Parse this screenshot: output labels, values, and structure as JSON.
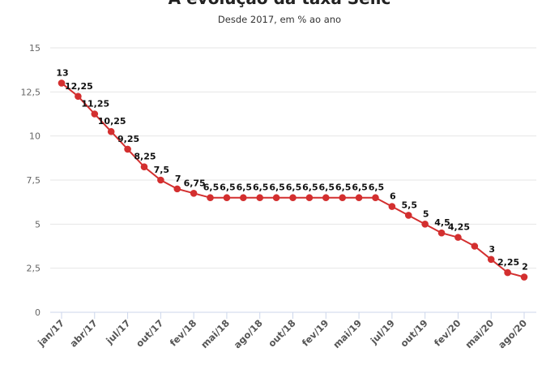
{
  "chart_data": {
    "type": "line",
    "title": "A evolução da taxa Selic",
    "subtitle": "Desde 2017, em % ao ano",
    "xlabel": "",
    "ylabel": "",
    "ylim": [
      0,
      15
    ],
    "yticks": [
      "0",
      "2,5",
      "5",
      "7,5",
      "10",
      "12,5",
      "15"
    ],
    "ytick_values": [
      0,
      2.5,
      5,
      7.5,
      10,
      12.5,
      15
    ],
    "xtick_labels": [
      "jan/17",
      "abr/17",
      "jul/17",
      "out/17",
      "fev/18",
      "mai/18",
      "ago/18",
      "out/18",
      "fev/19",
      "mai/19",
      "jul/19",
      "out/19",
      "fev/20",
      "mai/20",
      "ago/20"
    ],
    "grid": true,
    "color": "#d32f2f",
    "values": [
      13,
      12.25,
      11.25,
      10.25,
      9.25,
      8.25,
      7.5,
      7,
      6.75,
      6.5,
      6.5,
      6.5,
      6.5,
      6.5,
      6.5,
      6.5,
      6.5,
      6.5,
      6.5,
      6.5,
      6,
      5.5,
      5,
      4.5,
      4.25,
      3.75,
      3,
      2.25,
      2
    ],
    "data_labels": [
      "13",
      "12,25",
      "11,25",
      "10,25",
      "9,25",
      "8,25",
      "7,5",
      "7",
      "6,75",
      "6,5",
      "6,5",
      "6,5",
      "6,5",
      "6,5",
      "6,5",
      "6,5",
      "6,5",
      "6,5",
      "6,5",
      "6,5",
      "6",
      "5,5",
      "5",
      "4,5",
      "4,25",
      "",
      "3",
      "2,25",
      "2"
    ]
  }
}
